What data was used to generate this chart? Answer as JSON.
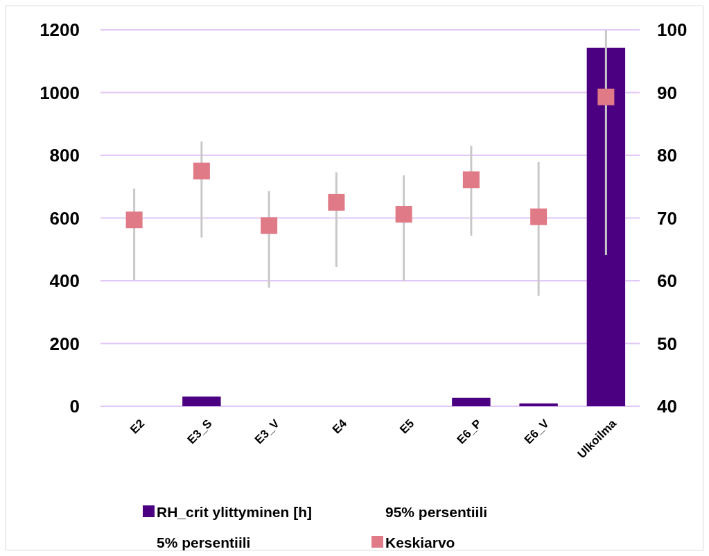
{
  "chart_data": {
    "type": "bar",
    "categories": [
      "E2",
      "E3_S",
      "E3_V",
      "E4",
      "E5",
      "E6_P",
      "E6_V",
      "Ulkoilma"
    ],
    "series": [
      {
        "name": "RH_crit ylittyminen [h]",
        "color": "#4b0082",
        "values": [
          0,
          31,
          0,
          0,
          0,
          27,
          9,
          1143
        ]
      },
      {
        "name": "Keskiarvo",
        "type": "scatter",
        "marker": "square",
        "axis": "y2",
        "color": "#e07a87",
        "values": [
          69.7,
          77.5,
          68.8,
          72.5,
          70.6,
          76.1,
          70.2,
          89.3
        ],
        "errors": [
          [
            60.1,
            74.7
          ],
          [
            66.9,
            82.2
          ],
          [
            58.9,
            74.3
          ],
          [
            62.2,
            77.3
          ],
          [
            60.0,
            76.8
          ],
          [
            67.2,
            81.5
          ],
          [
            57.6,
            78.9
          ],
          [
            64.1,
            100
          ]
        ]
      }
    ],
    "annotations": [
      "95% persentiili",
      "5% persentiili"
    ],
    "ylim": [
      0,
      1200
    ],
    "yticks": [
      0,
      200,
      400,
      600,
      800,
      1000,
      1200
    ],
    "y2lim": [
      40,
      100
    ],
    "y2ticks": [
      40,
      50,
      60,
      70,
      80,
      90,
      100
    ],
    "grid": "y",
    "legend": "bottom"
  }
}
